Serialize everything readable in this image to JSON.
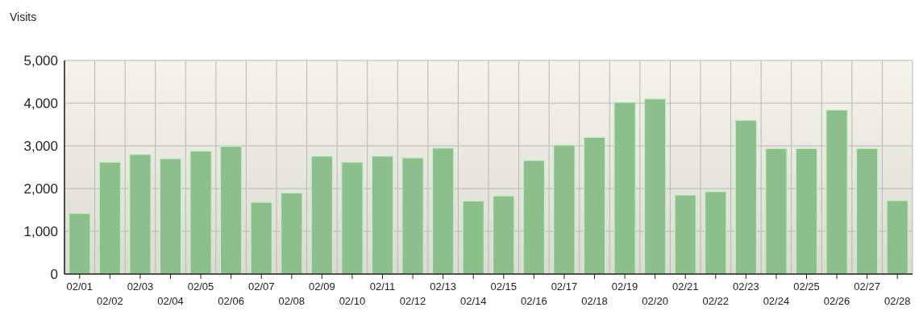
{
  "chart_data": {
    "type": "bar",
    "ylabel": "Visits",
    "categories": [
      "02/01",
      "02/02",
      "02/03",
      "02/04",
      "02/05",
      "02/06",
      "02/07",
      "02/08",
      "02/09",
      "02/10",
      "02/11",
      "02/12",
      "02/13",
      "02/14",
      "02/15",
      "02/16",
      "02/17",
      "02/18",
      "02/19",
      "02/20",
      "02/21",
      "02/22",
      "02/23",
      "02/24",
      "02/25",
      "02/26",
      "02/27",
      "02/28"
    ],
    "values": [
      1420,
      2620,
      2800,
      2700,
      2880,
      2990,
      1680,
      1900,
      2760,
      2620,
      2760,
      2720,
      2950,
      1710,
      1830,
      2660,
      3020,
      3200,
      4020,
      4100,
      1850,
      1930,
      3600,
      2940,
      2940,
      3840,
      2940,
      1720
    ],
    "color": "#8cbf8c",
    "ylim": [
      0,
      5000
    ],
    "yticks": [
      {
        "value": 0,
        "label": "0"
      },
      {
        "value": 1000,
        "label": "1,000"
      },
      {
        "value": 2000,
        "label": "2,000"
      },
      {
        "value": 3000,
        "label": "3,000"
      },
      {
        "value": 4000,
        "label": "4,000"
      },
      {
        "value": 5000,
        "label": "5,000"
      }
    ],
    "grid": true
  }
}
